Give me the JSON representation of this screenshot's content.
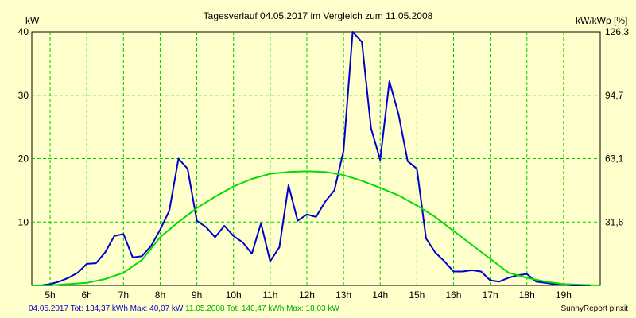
{
  "chart_data": {
    "type": "line",
    "title": "Tagesverlauf 04.05.2017 im Vergleich zum 11.05.2008",
    "ylabel_left": "kW",
    "ylabel_right": "kW/kWp [%]",
    "ylim": [
      0,
      40
    ],
    "xlim": [
      4.5,
      20.0
    ],
    "yticks_left": [
      "10",
      "20",
      "30",
      "40"
    ],
    "yticks_left_values": [
      10,
      20,
      30,
      40
    ],
    "yticks_right": [
      "31,6",
      "63,1",
      "94,7",
      "126,3"
    ],
    "xticks": [
      "5h",
      "6h",
      "7h",
      "8h",
      "9h",
      "10h",
      "11h",
      "12h",
      "13h",
      "14h",
      "15h",
      "16h",
      "17h",
      "18h",
      "19h"
    ],
    "xtick_values": [
      5,
      6,
      7,
      8,
      9,
      10,
      11,
      12,
      13,
      14,
      15,
      16,
      17,
      18,
      19
    ],
    "grid": true,
    "series": [
      {
        "name": "04.05.2017",
        "color": "#0000cc",
        "x": [
          4.5,
          4.75,
          5.0,
          5.25,
          5.5,
          5.75,
          6.0,
          6.25,
          6.5,
          6.75,
          7.0,
          7.25,
          7.5,
          7.75,
          8.0,
          8.25,
          8.5,
          8.75,
          9.0,
          9.25,
          9.5,
          9.75,
          10.0,
          10.25,
          10.5,
          10.75,
          11.0,
          11.25,
          11.5,
          11.75,
          12.0,
          12.25,
          12.5,
          12.75,
          13.0,
          13.25,
          13.5,
          13.75,
          14.0,
          14.25,
          14.5,
          14.75,
          15.0,
          15.25,
          15.5,
          15.75,
          16.0,
          16.25,
          16.5,
          16.75,
          17.0,
          17.25,
          17.5,
          17.75,
          18.0,
          18.25,
          18.5,
          18.75,
          19.0,
          19.25,
          19.5,
          19.75
        ],
        "values": [
          0.0,
          0.0,
          0.2,
          0.6,
          1.2,
          2.0,
          3.4,
          3.5,
          5.2,
          7.8,
          8.1,
          4.4,
          4.6,
          6.2,
          8.8,
          11.8,
          20.0,
          18.4,
          10.2,
          9.2,
          7.6,
          9.4,
          7.8,
          6.8,
          5.0,
          9.8,
          3.8,
          6.0,
          15.8,
          10.2,
          11.2,
          10.8,
          13.2,
          15.0,
          21.2,
          40.0,
          38.4,
          24.8,
          19.8,
          32.2,
          27.0,
          19.6,
          18.4,
          7.4,
          5.2,
          3.8,
          2.2,
          2.2,
          2.4,
          2.2,
          0.8,
          0.6,
          1.2,
          1.6,
          1.8,
          0.6,
          0.4,
          0.2,
          0.1,
          0.0,
          0.0,
          0.0
        ]
      },
      {
        "name": "11.05.2008",
        "color": "#00dd00",
        "x": [
          4.5,
          5.0,
          5.5,
          6.0,
          6.5,
          7.0,
          7.5,
          8.0,
          8.5,
          9.0,
          9.5,
          10.0,
          10.5,
          11.0,
          11.5,
          12.0,
          12.5,
          13.0,
          13.5,
          14.0,
          14.5,
          15.0,
          15.5,
          16.0,
          16.5,
          17.0,
          17.5,
          18.0,
          18.5,
          19.0,
          19.5,
          20.0
        ],
        "values": [
          0.0,
          0.0,
          0.2,
          0.4,
          1.0,
          2.0,
          4.0,
          7.6,
          10.0,
          12.2,
          14.0,
          15.6,
          16.8,
          17.6,
          17.9,
          18.0,
          17.9,
          17.4,
          16.5,
          15.4,
          14.2,
          12.6,
          10.8,
          8.6,
          6.4,
          4.2,
          2.0,
          1.2,
          0.6,
          0.2,
          0.1,
          0.0
        ]
      }
    ]
  },
  "footer": {
    "s1_label": "04.05.2017 Tot: 134,37 kWh Max: 40,07 kW",
    "s2_label": "11.05.2008 Tot: 140,47 kWh Max: 18,03 kW",
    "credit": "SunnyReport pinxit"
  }
}
